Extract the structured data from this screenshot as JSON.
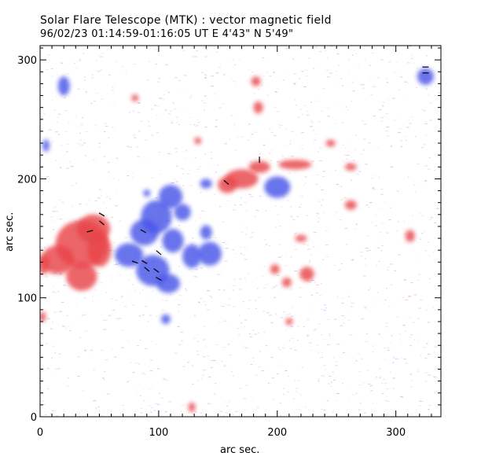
{
  "header": {
    "title": "Solar Flare Telescope (MTK) : vector magnetic field",
    "subtitle": "96/02/23  01:14:59-01:16:05 UT    E 4'43\"   N 5'49\""
  },
  "axes": {
    "xlabel": "arc sec.",
    "ylabel": "arc sec.",
    "x_ticks": [
      {
        "value": 0,
        "label": "0"
      },
      {
        "value": 100,
        "label": "100"
      },
      {
        "value": 200,
        "label": "200"
      },
      {
        "value": 300,
        "label": "300"
      }
    ],
    "y_ticks": [
      {
        "value": 0,
        "label": "0"
      },
      {
        "value": 100,
        "label": "100"
      },
      {
        "value": 200,
        "label": "200"
      },
      {
        "value": 300,
        "label": "300"
      }
    ],
    "xlim": [
      0,
      338
    ],
    "ylim": [
      0,
      312
    ],
    "minor_tick_step": 10
  },
  "colors": {
    "positive_polarity": "#e8444a",
    "negative_polarity": "#4a55e8",
    "vector_segments": "#000000"
  },
  "chart_data": {
    "type": "heatmap",
    "title": "Solar Flare Telescope (MTK) : vector magnetic field",
    "subtitle": "96/02/23  01:14:59-01:16:05 UT    E 4'43\"   N 5'49\"",
    "xlabel": "arc sec.",
    "ylabel": "arc sec.",
    "xlim": [
      0,
      338
    ],
    "ylim": [
      0,
      312
    ],
    "regions": [
      {
        "polarity": "positive",
        "x": 45,
        "y": 158,
        "rx": 14,
        "ry": 12
      },
      {
        "polarity": "positive",
        "x": 35,
        "y": 145,
        "rx": 22,
        "ry": 20
      },
      {
        "polarity": "positive",
        "x": 15,
        "y": 132,
        "rx": 14,
        "ry": 12
      },
      {
        "polarity": "positive",
        "x": 35,
        "y": 118,
        "rx": 13,
        "ry": 12
      },
      {
        "polarity": "positive",
        "x": 50,
        "y": 140,
        "rx": 10,
        "ry": 14
      },
      {
        "polarity": "positive",
        "x": 3,
        "y": 128,
        "rx": 5,
        "ry": 8
      },
      {
        "polarity": "positive",
        "x": 170,
        "y": 200,
        "rx": 14,
        "ry": 8
      },
      {
        "polarity": "positive",
        "x": 158,
        "y": 195,
        "rx": 8,
        "ry": 7
      },
      {
        "polarity": "positive",
        "x": 185,
        "y": 210,
        "rx": 9,
        "ry": 5
      },
      {
        "polarity": "positive",
        "x": 215,
        "y": 212,
        "rx": 14,
        "ry": 4
      },
      {
        "polarity": "positive",
        "x": 225,
        "y": 120,
        "rx": 6,
        "ry": 6
      },
      {
        "polarity": "positive",
        "x": 208,
        "y": 113,
        "rx": 4,
        "ry": 4
      },
      {
        "polarity": "positive",
        "x": 198,
        "y": 124,
        "rx": 4,
        "ry": 4
      },
      {
        "polarity": "positive",
        "x": 182,
        "y": 282,
        "rx": 4,
        "ry": 4
      },
      {
        "polarity": "positive",
        "x": 184,
        "y": 260,
        "rx": 4,
        "ry": 5
      },
      {
        "polarity": "positive",
        "x": 80,
        "y": 268,
        "rx": 3,
        "ry": 3
      },
      {
        "polarity": "positive",
        "x": 133,
        "y": 232,
        "rx": 3,
        "ry": 3
      },
      {
        "polarity": "positive",
        "x": 312,
        "y": 152,
        "rx": 4,
        "ry": 5
      },
      {
        "polarity": "positive",
        "x": 245,
        "y": 230,
        "rx": 4,
        "ry": 3
      },
      {
        "polarity": "positive",
        "x": 262,
        "y": 210,
        "rx": 5,
        "ry": 3
      },
      {
        "polarity": "positive",
        "x": 262,
        "y": 178,
        "rx": 5,
        "ry": 4
      },
      {
        "polarity": "positive",
        "x": 220,
        "y": 150,
        "rx": 5,
        "ry": 3
      },
      {
        "polarity": "positive",
        "x": 128,
        "y": 8,
        "rx": 3,
        "ry": 4
      },
      {
        "polarity": "positive",
        "x": 210,
        "y": 80,
        "rx": 3,
        "ry": 3
      },
      {
        "polarity": "positive",
        "x": 2,
        "y": 84,
        "rx": 3,
        "ry": 4
      },
      {
        "polarity": "negative",
        "x": 110,
        "y": 185,
        "rx": 10,
        "ry": 10
      },
      {
        "polarity": "negative",
        "x": 98,
        "y": 168,
        "rx": 13,
        "ry": 14
      },
      {
        "polarity": "negative",
        "x": 88,
        "y": 155,
        "rx": 12,
        "ry": 11
      },
      {
        "polarity": "negative",
        "x": 75,
        "y": 136,
        "rx": 12,
        "ry": 10
      },
      {
        "polarity": "negative",
        "x": 95,
        "y": 123,
        "rx": 14,
        "ry": 13
      },
      {
        "polarity": "negative",
        "x": 108,
        "y": 112,
        "rx": 10,
        "ry": 8
      },
      {
        "polarity": "negative",
        "x": 112,
        "y": 148,
        "rx": 9,
        "ry": 10
      },
      {
        "polarity": "negative",
        "x": 120,
        "y": 172,
        "rx": 7,
        "ry": 7
      },
      {
        "polarity": "negative",
        "x": 128,
        "y": 135,
        "rx": 8,
        "ry": 10
      },
      {
        "polarity": "negative",
        "x": 143,
        "y": 137,
        "rx": 10,
        "ry": 10
      },
      {
        "polarity": "negative",
        "x": 140,
        "y": 155,
        "rx": 5,
        "ry": 6
      },
      {
        "polarity": "negative",
        "x": 140,
        "y": 196,
        "rx": 5,
        "ry": 4
      },
      {
        "polarity": "negative",
        "x": 200,
        "y": 193,
        "rx": 11,
        "ry": 9
      },
      {
        "polarity": "negative",
        "x": 106,
        "y": 82,
        "rx": 4,
        "ry": 4
      },
      {
        "polarity": "negative",
        "x": 20,
        "y": 278,
        "rx": 5,
        "ry": 8
      },
      {
        "polarity": "negative",
        "x": 5,
        "y": 228,
        "rx": 3,
        "ry": 5
      },
      {
        "polarity": "negative",
        "x": 325,
        "y": 286,
        "rx": 7,
        "ry": 7
      },
      {
        "polarity": "negative",
        "x": 90,
        "y": 188,
        "rx": 3,
        "ry": 3
      }
    ],
    "vectors": [
      {
        "x": 42,
        "y": 156,
        "angle": -15
      },
      {
        "x": 52,
        "y": 163,
        "angle": 40
      },
      {
        "x": 52,
        "y": 170,
        "angle": 30
      },
      {
        "x": 87,
        "y": 156,
        "angle": 30
      },
      {
        "x": 80,
        "y": 130,
        "angle": 20
      },
      {
        "x": 88,
        "y": 130,
        "angle": 30
      },
      {
        "x": 90,
        "y": 124,
        "angle": 40
      },
      {
        "x": 98,
        "y": 123,
        "angle": 35
      },
      {
        "x": 100,
        "y": 116,
        "angle": 30
      },
      {
        "x": 100,
        "y": 138,
        "angle": 40
      },
      {
        "x": 157,
        "y": 197,
        "angle": 40
      },
      {
        "x": 185,
        "y": 216,
        "angle": 90
      },
      {
        "x": 325,
        "y": 294,
        "angle": 0
      },
      {
        "x": 325,
        "y": 289,
        "angle": 0
      }
    ]
  }
}
